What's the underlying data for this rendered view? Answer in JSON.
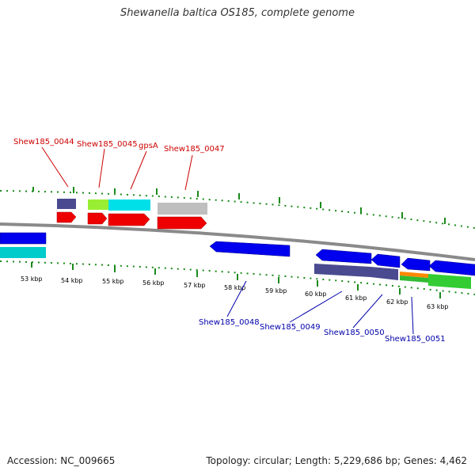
{
  "title": "Shewanella baltica OS185, complete genome",
  "footer": {
    "accession": "Accession: NC_009665",
    "stats": "Topology: circular; Length: 5,229,686 bp; Genes: 4,462"
  },
  "colors": {
    "label_top": "#cc0000",
    "label_bottom": "#0000aa",
    "tick": "#1a8a1a",
    "backbone": "#8a8a8a"
  },
  "scale": {
    "tick_labels": [
      "53 kbp",
      "54 kbp",
      "55 kbp",
      "56 kbp",
      "57 kbp",
      "58 kbp",
      "59 kbp",
      "60 kbp",
      "61 kbp",
      "62 kbp",
      "63 kbp"
    ]
  },
  "gene_labels_top": [
    "Shew185_0044",
    "Shew185_0045",
    "gpsA",
    "Shew185_0047"
  ],
  "gene_labels_bottom": [
    "Shew185_0048",
    "Shew185_0049",
    "Shew185_0050",
    "Shew185_0051"
  ]
}
